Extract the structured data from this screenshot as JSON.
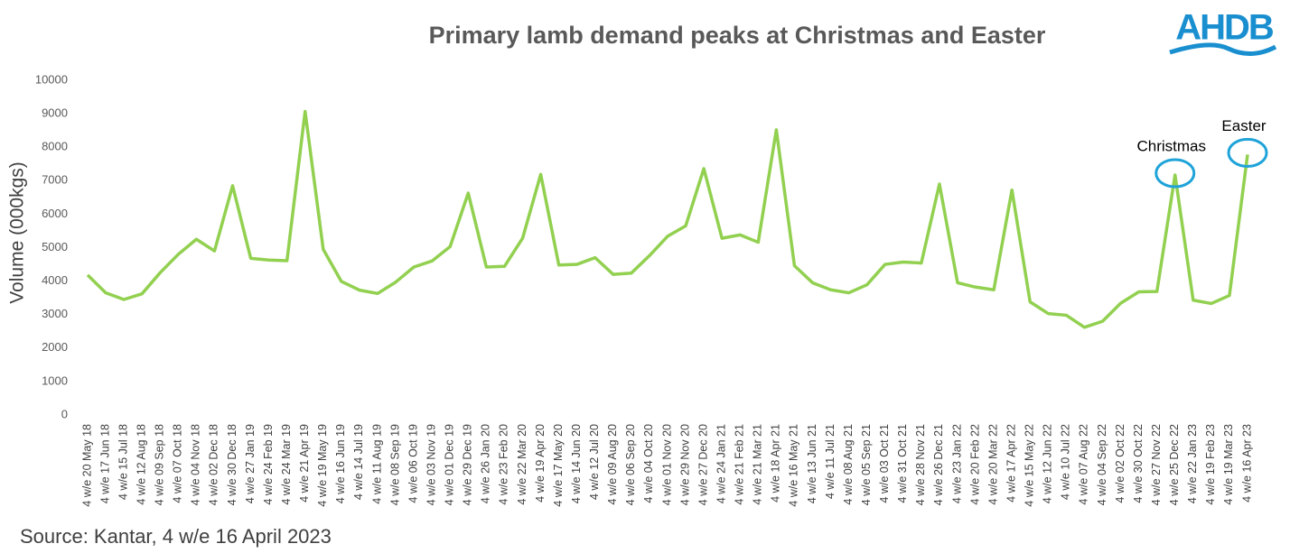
{
  "chart_data": {
    "type": "line",
    "title": "Primary lamb demand peaks at Christmas and Easter",
    "y_label": "Volume (000kgs)",
    "categories": [
      "4 w/e 20 May 18",
      "4 w/e 17 Jun 18",
      "4 w/e 15 Jul 18",
      "4 w/e 12 Aug 18",
      "4 w/e 09 Sep 18",
      "4 w/e 07 Oct 18",
      "4 w/e 04 Nov 18",
      "4 w/e 02 Dec 18",
      "4 w/e 30 Dec 18",
      "4 w/e 27 Jan 19",
      "4 w/e 24 Feb 19",
      "4 w/e 24 Mar 19",
      "4 w/e 21 Apr 19",
      "4 w/e 19 May 19",
      "4 w/e 16 Jun 19",
      "4 w/e 14 Jul 19",
      "4 w/e 11 Aug 19",
      "4 w/e 08 Sep 19",
      "4 w/e 06 Oct 19",
      "4 w/e 03 Nov 19",
      "4 w/e 01 Dec 19",
      "4 w/e 29 Dec 19",
      "4 w/e 26 Jan 20",
      "4 w/e 23 Feb 20",
      "4 w/e 22 Mar 20",
      "4 w/e 19 Apr 20",
      "4 w/e 17 May 20",
      "4 w/e 14 Jun 20",
      "4 w/e 12 Jul 20",
      "4 w/e 09 Aug 20",
      "4 w/e 06 Sep 20",
      "4 w/e 04 Oct 20",
      "4 w/e 01 Nov 20",
      "4 w/e 29 Nov 20",
      "4 w/e 27 Dec 20",
      "4 w/e 24 Jan 21",
      "4 w/e 21 Feb 21",
      "4 w/e 21 Mar 21",
      "4 w/e 18 Apr 21",
      "4 w/e 16 May 21",
      "4 w/e 13 Jun 21",
      "4 w/e 11 Jul 21",
      "4 w/e 08 Aug 21",
      "4 w/e 05 Sep 21",
      "4 w/e 03 Oct 21",
      "4 w/e 31 Oct 21",
      "4 w/e 28 Nov 21",
      "4 w/e 26 Dec 21",
      "4 w/e 23 Jan 22",
      "4 w/e 20 Feb 22",
      "4 w/e 20 Mar 22",
      "4 w/e 17 Apr 22",
      "4 w/e 15 May 22",
      "4 w/e 12 Jun 22",
      "4 w/e 10 Jul 22",
      "4 w/e 07 Aug 22",
      "4 w/e 04 Sep 22",
      "4 w/e 02 Oct 22",
      "4 w/e 30 Oct 22",
      "4 w/e 27 Nov 22",
      "4 w/e 25 Dec 22",
      "4 w/e 22 Jan 23",
      "4 w/e 19 Feb 23",
      "4 w/e 19 Mar 23",
      "4 w/e 16 Apr 23"
    ],
    "values": [
      4180,
      3650,
      3450,
      3620,
      4250,
      4800,
      5250,
      4900,
      6850,
      4680,
      4630,
      4610,
      9070,
      4950,
      3990,
      3730,
      3630,
      3970,
      4420,
      4600,
      5030,
      6630,
      4420,
      4440,
      5280,
      7190,
      4480,
      4500,
      4700,
      4200,
      4240,
      4760,
      5340,
      5650,
      7360,
      5280,
      5380,
      5160,
      8520,
      4460,
      3950,
      3740,
      3650,
      3890,
      4500,
      4570,
      4540,
      6900,
      3950,
      3820,
      3740,
      6720,
      3380,
      3030,
      2980,
      2620,
      2800,
      3340,
      3680,
      3690,
      7170,
      3430,
      3330,
      3570,
      7780
    ],
    "color": "#92d050",
    "ylim": [
      0,
      10000
    ],
    "yticks": [
      0,
      1000,
      2000,
      3000,
      4000,
      5000,
      6000,
      7000,
      8000,
      9000,
      10000
    ],
    "annotations": [
      {
        "text": "Christmas",
        "x": "4 w/e 25 Dec 22",
        "color": "#1fa3d8"
      },
      {
        "text": "Easter",
        "x": "4 w/e 16 Apr 23",
        "color": "#1fa3d8"
      }
    ]
  },
  "source": "Source: Kantar, 4 w/e 16 April 2023",
  "logo": "AHDB"
}
